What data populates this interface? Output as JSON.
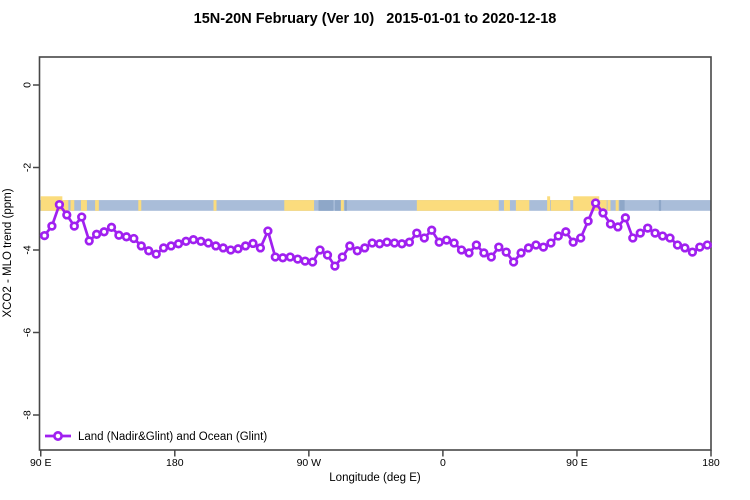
{
  "figure": {
    "title": "15N-20N February (Ver 10)   2015-01-01 to 2020-12-18",
    "x_axis_label": "Longitude (deg E)",
    "y_axis_label": "XCO2 - MLO trend (ppm)"
  },
  "legend": {
    "label": "Land (Nadir&Glint) and Ocean (Glint)",
    "marker": "open-circle-on-line",
    "color": "#a020f0"
  },
  "map_band": {
    "description": "world map strip (15N-20N latitude band) drawn across the plot near -2.9 ppm",
    "ocean_color": "#a9bdd9",
    "land_color": "#fbdc7d",
    "island_color": "#8ea7c8",
    "y_range_ppm": [
      -3.05,
      -2.79
    ],
    "patches": [
      {
        "lon": [
          90,
          104.5
        ],
        "type": "land",
        "tall": true
      },
      {
        "lon": [
          104.5,
          108.5
        ],
        "type": "land",
        "tall": false
      },
      {
        "lon": [
          110,
          112.5
        ],
        "type": "land",
        "tall": false
      },
      {
        "lon": [
          117,
          121
        ],
        "type": "land",
        "tall": false
      },
      {
        "lon": [
          126.5,
          129
        ],
        "type": "land",
        "tall": false
      },
      {
        "lon": [
          155.5,
          157.5
        ],
        "type": "land",
        "tall": false
      },
      {
        "lon": [
          206,
          208
        ],
        "type": "land",
        "tall": false
      },
      {
        "lon": [
          253.5,
          273.5
        ],
        "type": "land",
        "tall": false
      },
      {
        "lon": [
          276.5,
          286.5
        ],
        "type": "island",
        "tall": false
      },
      {
        "lon": [
          287.5,
          291.5
        ],
        "type": "island",
        "tall": false
      },
      {
        "lon": [
          291.5,
          293.5
        ],
        "type": "land",
        "tall": false
      },
      {
        "lon": [
          294,
          295.5
        ],
        "type": "island",
        "tall": false
      },
      {
        "lon": [
          342.5,
          397.5
        ],
        "type": "land",
        "tall": false
      },
      {
        "lon": [
          401,
          405
        ],
        "type": "land",
        "tall": false
      },
      {
        "lon": [
          409,
          418
        ],
        "type": "land",
        "tall": false
      },
      {
        "lon": [
          430,
          432
        ],
        "type": "land",
        "tall": true
      },
      {
        "lon": [
          432.5,
          445.5
        ],
        "type": "land",
        "tall": false
      },
      {
        "lon": [
          447.5,
          465
        ],
        "type": "land",
        "tall": true
      },
      {
        "lon": [
          465,
          470
        ],
        "type": "land",
        "tall": false
      },
      {
        "lon": [
          470.5,
          472.5
        ],
        "type": "land",
        "tall": false
      },
      {
        "lon": [
          476,
          478
        ],
        "type": "land",
        "tall": false
      },
      {
        "lon": [
          478.5,
          482
        ],
        "type": "island",
        "tall": false
      },
      {
        "lon": [
          505,
          506.5
        ],
        "type": "island",
        "tall": false
      }
    ]
  },
  "chart_data": {
    "type": "line",
    "title": "15N-20N February (Ver 10)   2015-01-01 to 2020-12-18",
    "xlabel": "Longitude (deg E)",
    "ylabel": "XCO2 - MLO trend (ppm)",
    "xlim": [
      90,
      540
    ],
    "ylim": [
      -8.85,
      0.7
    ],
    "grid": false,
    "legend_position": "bottom-left",
    "x_ticks": [
      {
        "pos": 90,
        "label": "90 E"
      },
      {
        "pos": 180,
        "label": "180"
      },
      {
        "pos": 270,
        "label": "90 W"
      },
      {
        "pos": 360,
        "label": "0"
      },
      {
        "pos": 450,
        "label": "90 E"
      },
      {
        "pos": 540,
        "label": "180"
      }
    ],
    "y_ticks": [
      {
        "pos": 0,
        "label": "0"
      },
      {
        "pos": -2,
        "label": "-2"
      },
      {
        "pos": -4,
        "label": "-4"
      },
      {
        "pos": -6,
        "label": "-6"
      },
      {
        "pos": -8,
        "label": "-8"
      }
    ],
    "series": [
      {
        "name": "Land (Nadir&Glint) and Ocean (Glint)",
        "color": "#a020f0",
        "marker": "open-circle",
        "x_unit": "deg E, axis continues past 180 (wrapped: 270=90W, 360=0, 450=90E, 540=180)",
        "x": [
          92.5,
          97.5,
          102.5,
          107.5,
          112.5,
          117.5,
          122.5,
          127.5,
          132.5,
          137.5,
          142.5,
          147.5,
          152.5,
          157.5,
          162.5,
          167.5,
          172.5,
          177.5,
          182.5,
          187.5,
          192.5,
          197.5,
          202.5,
          207.5,
          212.5,
          217.5,
          222.5,
          227.5,
          232.5,
          237.5,
          242.5,
          247.5,
          252.5,
          257.5,
          262.5,
          267.5,
          272.5,
          277.5,
          282.5,
          287.5,
          292.5,
          297.5,
          302.5,
          307.5,
          312.5,
          317.5,
          322.5,
          327.5,
          332.5,
          337.5,
          342.5,
          347.5,
          352.5,
          357.5,
          362.5,
          367.5,
          372.5,
          377.5,
          382.5,
          387.5,
          392.5,
          397.5,
          402.5,
          407.5,
          412.5,
          417.5,
          422.5,
          427.5,
          432.5,
          437.5,
          442.5,
          447.5,
          452.5,
          457.5,
          462.5,
          467.5,
          472.5,
          477.5,
          482.5,
          487.5,
          492.5,
          497.5,
          502.5,
          507.5,
          512.5,
          517.5,
          522.5,
          527.5,
          532.5,
          537.5
        ],
        "y": [
          -3.65,
          -3.42,
          -2.9,
          -3.15,
          -3.42,
          -3.2,
          -3.78,
          -3.62,
          -3.56,
          -3.45,
          -3.64,
          -3.68,
          -3.72,
          -3.9,
          -4.02,
          -4.1,
          -3.95,
          -3.9,
          -3.85,
          -3.79,
          -3.75,
          -3.79,
          -3.83,
          -3.9,
          -3.95,
          -4.0,
          -3.97,
          -3.9,
          -3.84,
          -3.95,
          -3.54,
          -4.17,
          -4.19,
          -4.17,
          -4.22,
          -4.27,
          -4.29,
          -4.0,
          -4.12,
          -4.39,
          -4.17,
          -3.9,
          -4.02,
          -3.95,
          -3.83,
          -3.85,
          -3.81,
          -3.83,
          -3.85,
          -3.81,
          -3.59,
          -3.71,
          -3.52,
          -3.81,
          -3.76,
          -3.83,
          -4.0,
          -4.07,
          -3.88,
          -4.07,
          -4.17,
          -3.93,
          -4.05,
          -4.29,
          -4.07,
          -3.95,
          -3.88,
          -3.93,
          -3.83,
          -3.66,
          -3.56,
          -3.81,
          -3.71,
          -3.3,
          -2.86,
          -3.1,
          -3.37,
          -3.44,
          -3.22,
          -3.71,
          -3.59,
          -3.47,
          -3.59,
          -3.66,
          -3.71,
          -3.88,
          -3.95,
          -4.05,
          -3.93,
          -3.88
        ]
      }
    ]
  }
}
